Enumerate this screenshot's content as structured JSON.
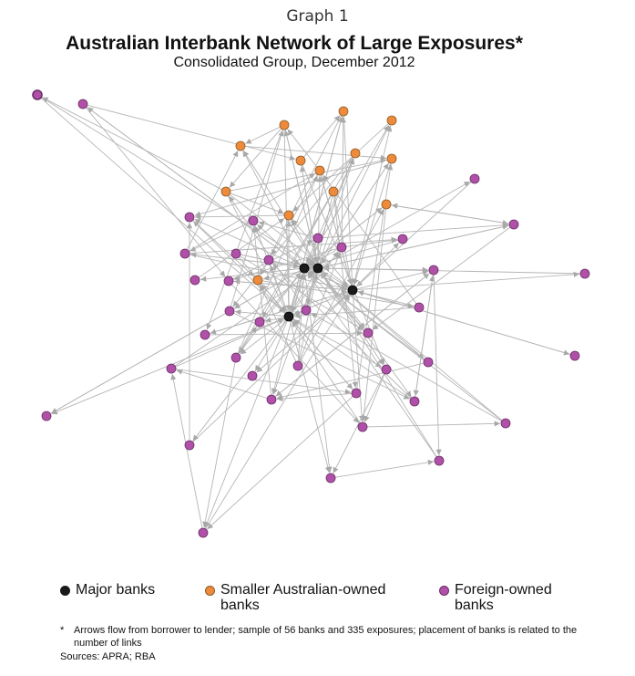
{
  "graph_label": "Graph 1",
  "title": "Australian Interbank Network of Large Exposures*",
  "subtitle": "Consolidated Group, December 2012",
  "colors": {
    "major": "#1a1a1a",
    "smaller": "#ee8a3a",
    "foreign": "#b050a8",
    "edge": "#b5b5b5"
  },
  "legend": {
    "major": "Major banks",
    "smaller": "Smaller Australian-owned\nbanks",
    "foreign": "Foreign-owned\nbanks"
  },
  "footnote": {
    "mark": "*",
    "text": "Arrows flow from borrower to lender; sample of 56 banks and 335 exposures; placement of banks is related to the number of links"
  },
  "sources": "Sources: APRA; RBA"
}
